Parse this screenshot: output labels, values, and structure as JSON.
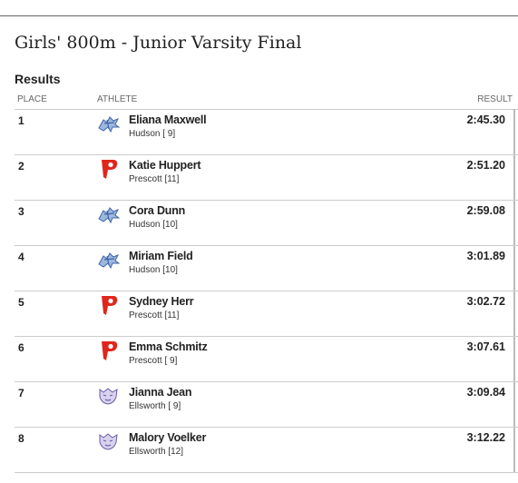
{
  "header": {
    "title": "Girls' 800m - Junior Varsity Final"
  },
  "section": "Results",
  "table": {
    "columns": [
      "PLACE",
      "ATHLETE",
      "RESULT"
    ],
    "rows": [
      {
        "place": "1",
        "name": "Eliana Maxwell",
        "school": "Hudson [ 9]",
        "result": "2:45.30"
      },
      {
        "place": "2",
        "name": "Katie Huppert",
        "school": "Prescott [11]",
        "result": "2:51.20"
      },
      {
        "place": "3",
        "name": "Cora Dunn",
        "school": "Hudson [10]",
        "result": "2:59.08"
      },
      {
        "place": "4",
        "name": "Miriam Field",
        "school": "Hudson [10]",
        "result": "3:01.89"
      },
      {
        "place": "5",
        "name": "Sydney Herr",
        "school": "Prescott [11]",
        "result": "3:02.72"
      },
      {
        "place": "6",
        "name": "Emma Schmitz",
        "school": "Prescott [ 9]",
        "result": "3:07.61"
      },
      {
        "place": "7",
        "name": "Jianna Jean",
        "school": "Ellsworth [ 9]",
        "result": "3:09.84"
      },
      {
        "place": "8",
        "name": "Malory Voelker",
        "school": "Ellsworth [12]",
        "result": "3:12.22"
      }
    ]
  }
}
